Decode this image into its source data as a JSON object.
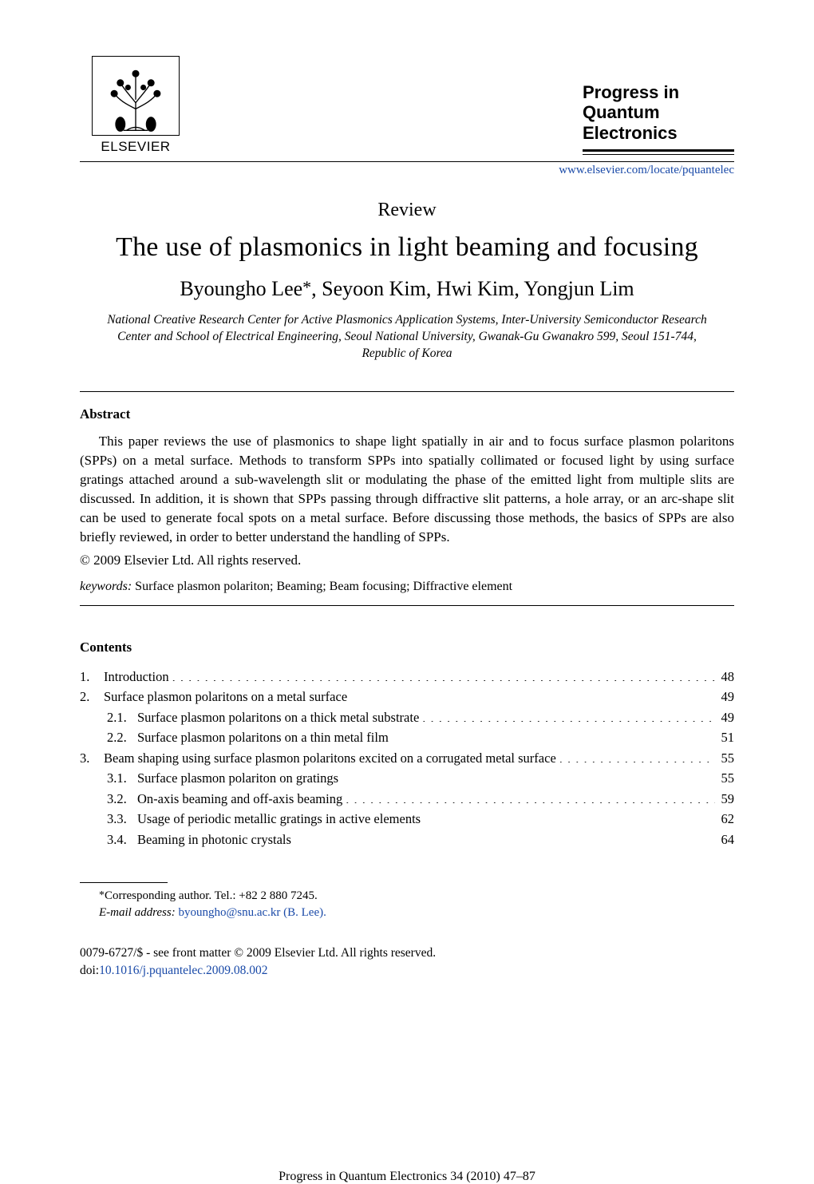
{
  "colors": {
    "text": "#000000",
    "link": "#1a4aa8",
    "background": "#ffffff",
    "rule": "#000000"
  },
  "typography": {
    "body_family": "Times New Roman",
    "sans_family": "Arial",
    "title_fontsize_pt": 26,
    "authors_fontsize_pt": 20,
    "body_fontsize_pt": 13,
    "affiliation_fontsize_pt": 12
  },
  "publisher": {
    "name": "ELSEVIER",
    "logo_alt": "Elsevier tree logo"
  },
  "journal": {
    "title_line1": "Progress in",
    "title_line2": "Quantum",
    "title_line3": "Electronics",
    "biblio": "Progress in Quantum Electronics 34 (2010) 47–87",
    "homepage": "www.elsevier.com/locate/pquantelec"
  },
  "article": {
    "type": "Review",
    "title": "The use of plasmonics in light beaming and focusing",
    "authors": "Byoungho Lee",
    "authors_rest": ", Seyoon Kim, Hwi Kim, Yongjun Lim",
    "corr_symbol": "*",
    "affiliation": "National Creative Research Center for Active Plasmonics Application Systems, Inter-University Semiconductor Research Center and School of Electrical Engineering, Seoul National University, Gwanak-Gu Gwanakro 599, Seoul 151-744, Republic of Korea"
  },
  "abstract": {
    "header": "Abstract",
    "body": "This paper reviews the use of plasmonics to shape light spatially in air and to focus surface plasmon polaritons (SPPs) on a metal surface. Methods to transform SPPs into spatially collimated or focused light by using surface gratings attached around a sub-wavelength slit or modulating the phase of the emitted light from multiple slits are discussed. In addition, it is shown that SPPs passing through diffractive slit patterns, a hole array, or an arc-shape slit can be used to generate focal spots on a metal surface. Before discussing those methods, the basics of SPPs are also briefly reviewed, in order to better understand the handling of SPPs.",
    "copyright": "© 2009 Elsevier Ltd. All rights reserved."
  },
  "keywords": {
    "label": "keywords:",
    "text": " Surface plasmon polariton; Beaming; Beam focusing; Diffractive element"
  },
  "contents": {
    "header": "Contents",
    "items": [
      {
        "num": "1.",
        "label": "Introduction",
        "page": "48",
        "level": 1
      },
      {
        "num": "2.",
        "label": "Surface plasmon polaritons on a metal surface",
        "page": "49",
        "level": 1
      },
      {
        "num": "2.1.",
        "label": "Surface plasmon polaritons on a thick metal substrate",
        "page": "49",
        "level": 2
      },
      {
        "num": "2.2.",
        "label": "Surface plasmon polaritons on a thin metal film",
        "page": "51",
        "level": 2
      },
      {
        "num": "3.",
        "label": "Beam shaping using surface plasmon polaritons excited on a corrugated metal surface",
        "page": "55",
        "level": 1
      },
      {
        "num": "3.1.",
        "label": "Surface plasmon polariton on gratings",
        "page": "55",
        "level": 2
      },
      {
        "num": "3.2.",
        "label": "On-axis beaming and off-axis beaming",
        "page": "59",
        "level": 2
      },
      {
        "num": "3.3.",
        "label": "Usage of periodic metallic gratings in active elements",
        "page": "62",
        "level": 2
      },
      {
        "num": "3.4.",
        "label": "Beaming in photonic crystals",
        "page": "64",
        "level": 2
      }
    ]
  },
  "footnotes": {
    "corr": "Corresponding author. Tel.: +82 2 880 7245.",
    "email_label": "E-mail address:",
    "email": " byoungho@snu.ac.kr (B. Lee)."
  },
  "bottom": {
    "line1": "0079-6727/$ - see front matter © 2009 Elsevier Ltd. All rights reserved.",
    "doi_label": "doi:",
    "doi": "10.1016/j.pquantelec.2009.08.002"
  }
}
